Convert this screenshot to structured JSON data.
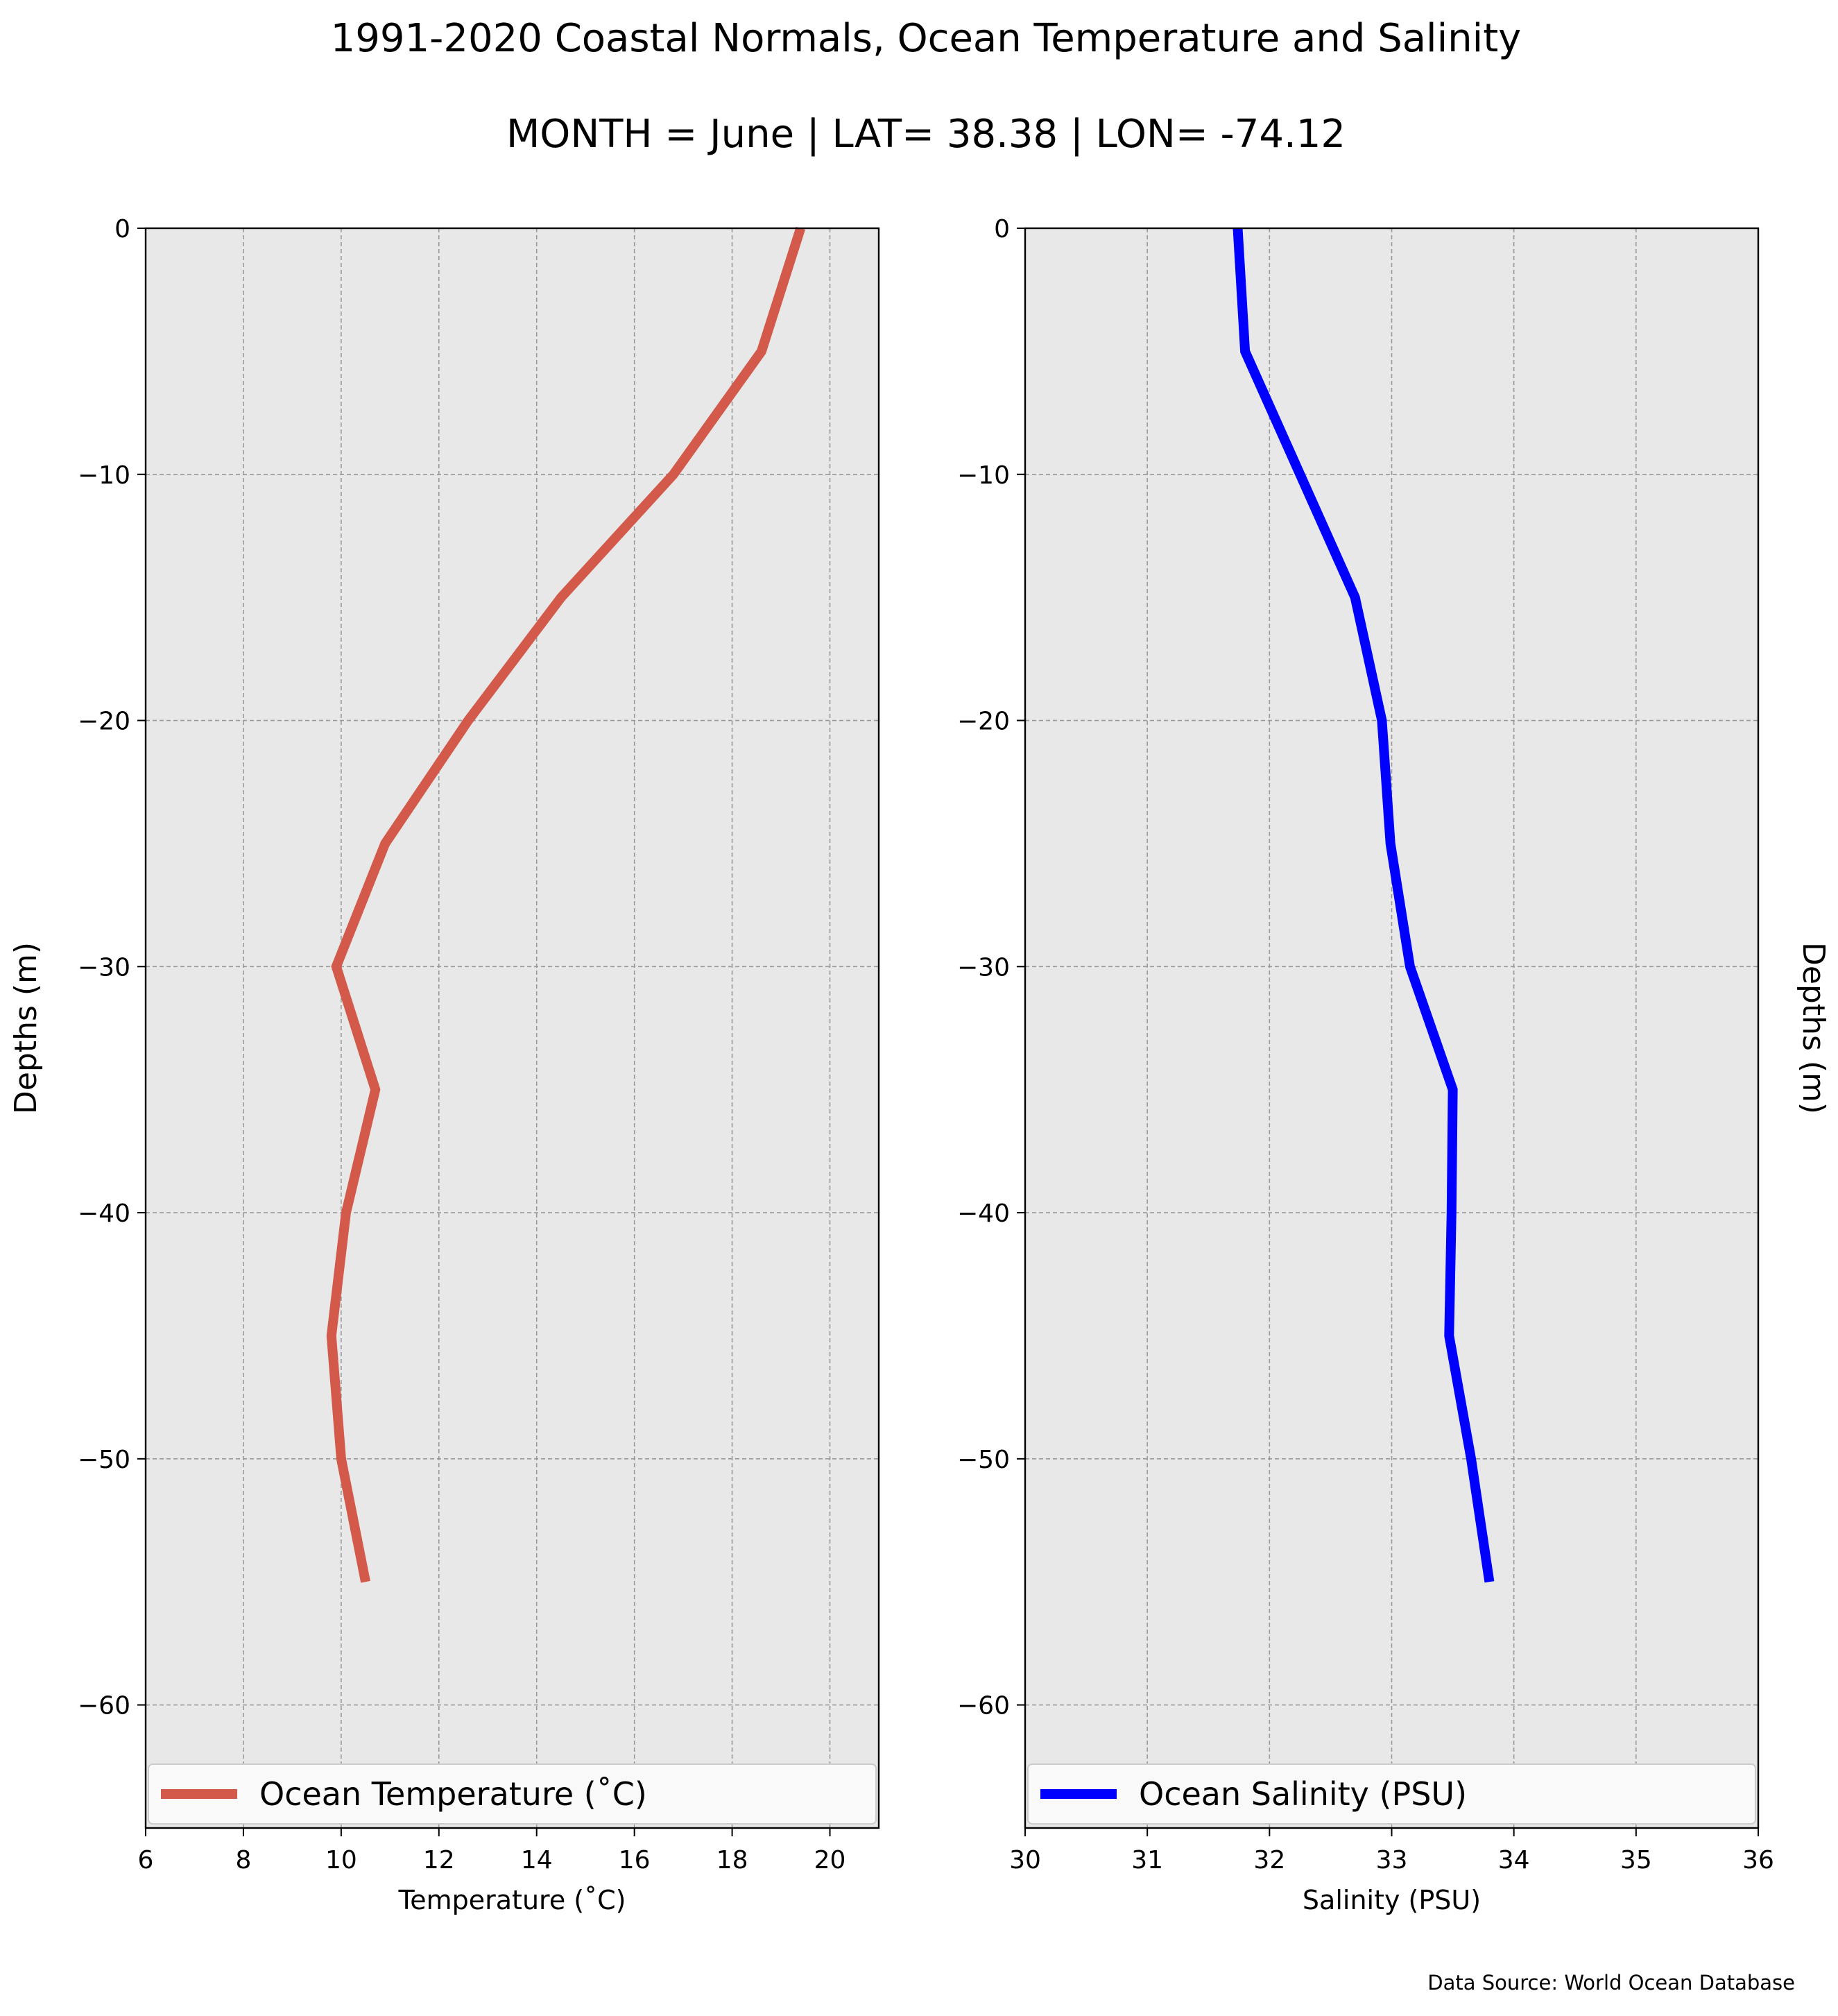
{
  "figure": {
    "title": "1991-2020 Coastal Normals, Ocean Temperature and Salinity",
    "subtitle": "MONTH = June | LAT= 38.38 | LON= -74.12",
    "source": "Data Source: World Ocean Database"
  },
  "chart_data": [
    {
      "type": "line",
      "series": [
        {
          "name": "Ocean Temperature ($^\\circ$C)",
          "legend_label": "Ocean Temperature (˚C)",
          "color": "#d35a4a",
          "x": [
            19.4,
            18.6,
            16.8,
            14.5,
            12.6,
            10.9,
            9.9,
            10.7,
            10.1,
            9.8,
            10.0,
            10.5
          ],
          "y": [
            0,
            -5,
            -10,
            -15,
            -20,
            -25,
            -30,
            -35,
            -40,
            -45,
            -50,
            -55
          ]
        }
      ],
      "xlabel": "Temperature (˚C)",
      "ylabel": "Depths (m)",
      "xlim": [
        6,
        21
      ],
      "ylim": [
        -65,
        0
      ],
      "xticks": [
        "6",
        "8",
        "10",
        "12",
        "14",
        "16",
        "18",
        "20"
      ],
      "yticks": [
        "0",
        "−10",
        "−20",
        "−30",
        "−40",
        "−50",
        "−60"
      ],
      "grid": true,
      "legend_position": "bottom"
    },
    {
      "type": "line",
      "series": [
        {
          "name": "Ocean Salinity (PSU)",
          "legend_label": "Ocean Salinity (PSU)",
          "color": "#0000ff",
          "x": [
            31.74,
            31.8,
            32.25,
            32.7,
            32.92,
            32.99,
            33.15,
            33.5,
            33.49,
            33.47,
            33.65,
            33.8
          ],
          "y": [
            0,
            -5,
            -10,
            -15,
            -20,
            -25,
            -30,
            -35,
            -40,
            -45,
            -50,
            -55
          ]
        }
      ],
      "xlabel": "Salinity (PSU)",
      "ylabel": "Depths (m)",
      "xlim": [
        30,
        36
      ],
      "ylim": [
        -65,
        0
      ],
      "xticks": [
        "30",
        "31",
        "32",
        "33",
        "34",
        "35",
        "36"
      ],
      "yticks": [
        "0",
        "−10",
        "−20",
        "−30",
        "−40",
        "−50",
        "−60"
      ],
      "grid": true,
      "legend_position": "bottom"
    }
  ]
}
